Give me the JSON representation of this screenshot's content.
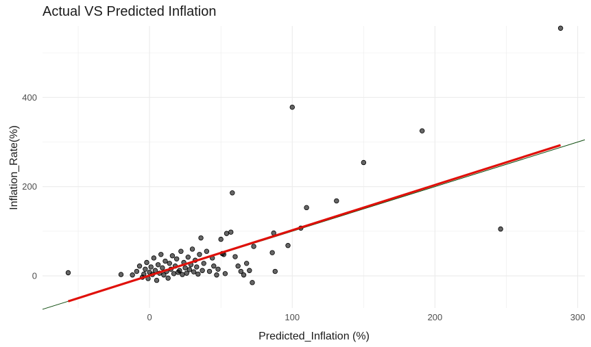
{
  "chart_data": {
    "type": "scatter",
    "title": "Actual VS Predicted Inflation",
    "xlabel": "Predicted_Inflation (%)",
    "ylabel": "Inflation_Rate(%)",
    "xlim": [
      -75,
      305
    ],
    "ylim": [
      -72,
      560
    ],
    "x_ticks": [
      0,
      100,
      200,
      300
    ],
    "y_ticks": [
      0,
      200,
      400
    ],
    "grid": true,
    "legend": "none",
    "colors": {
      "points": "#000000",
      "fit_line": "#e0100a",
      "reference_line": "#0b4a0b",
      "grid": "#ebebeb"
    },
    "series": [
      {
        "values": [
          [
            -57,
            7
          ],
          [
            -20,
            3
          ],
          [
            -12,
            2
          ],
          [
            -9,
            10
          ],
          [
            -7,
            22
          ],
          [
            -5,
            -3
          ],
          [
            -4,
            4
          ],
          [
            -3,
            15
          ],
          [
            -2,
            30
          ],
          [
            -1,
            -6
          ],
          [
            0,
            8
          ],
          [
            1,
            20
          ],
          [
            2,
            3
          ],
          [
            3,
            40
          ],
          [
            4,
            12
          ],
          [
            5,
            -10
          ],
          [
            6,
            25
          ],
          [
            7,
            6
          ],
          [
            8,
            48
          ],
          [
            9,
            18
          ],
          [
            10,
            2
          ],
          [
            11,
            33
          ],
          [
            12,
            10
          ],
          [
            13,
            -5
          ],
          [
            14,
            28
          ],
          [
            15,
            15
          ],
          [
            16,
            45
          ],
          [
            17,
            5
          ],
          [
            18,
            22
          ],
          [
            19,
            38
          ],
          [
            20,
            8
          ],
          [
            21,
            12
          ],
          [
            22,
            55
          ],
          [
            23,
            3
          ],
          [
            24,
            30
          ],
          [
            25,
            18
          ],
          [
            26,
            6
          ],
          [
            27,
            42
          ],
          [
            28,
            14
          ],
          [
            29,
            25
          ],
          [
            30,
            60
          ],
          [
            31,
            9
          ],
          [
            32,
            35
          ],
          [
            33,
            20
          ],
          [
            34,
            4
          ],
          [
            35,
            48
          ],
          [
            36,
            85
          ],
          [
            37,
            12
          ],
          [
            38,
            28
          ],
          [
            40,
            55
          ],
          [
            42,
            10
          ],
          [
            44,
            40
          ],
          [
            45,
            22
          ],
          [
            47,
            2
          ],
          [
            48,
            15
          ],
          [
            50,
            82
          ],
          [
            51,
            50
          ],
          [
            52,
            48
          ],
          [
            53,
            5
          ],
          [
            54,
            95
          ],
          [
            57,
            98
          ],
          [
            58,
            186
          ],
          [
            60,
            43
          ],
          [
            62,
            22
          ],
          [
            64,
            10
          ],
          [
            66,
            2
          ],
          [
            68,
            28
          ],
          [
            70,
            12
          ],
          [
            72,
            -15
          ],
          [
            73,
            66
          ],
          [
            86,
            52
          ],
          [
            87,
            96
          ],
          [
            88,
            10
          ],
          [
            97,
            68
          ],
          [
            100,
            378
          ],
          [
            106,
            107
          ],
          [
            110,
            153
          ],
          [
            131,
            168
          ],
          [
            150,
            254
          ],
          [
            191,
            325
          ],
          [
            246,
            105
          ],
          [
            288,
            555
          ]
        ]
      }
    ],
    "fit_line": {
      "x": [
        -57,
        288
      ],
      "y": [
        -57,
        293
      ]
    },
    "reference_line": {
      "x": [
        -75,
        305
      ],
      "y": [
        -75,
        305
      ]
    }
  }
}
